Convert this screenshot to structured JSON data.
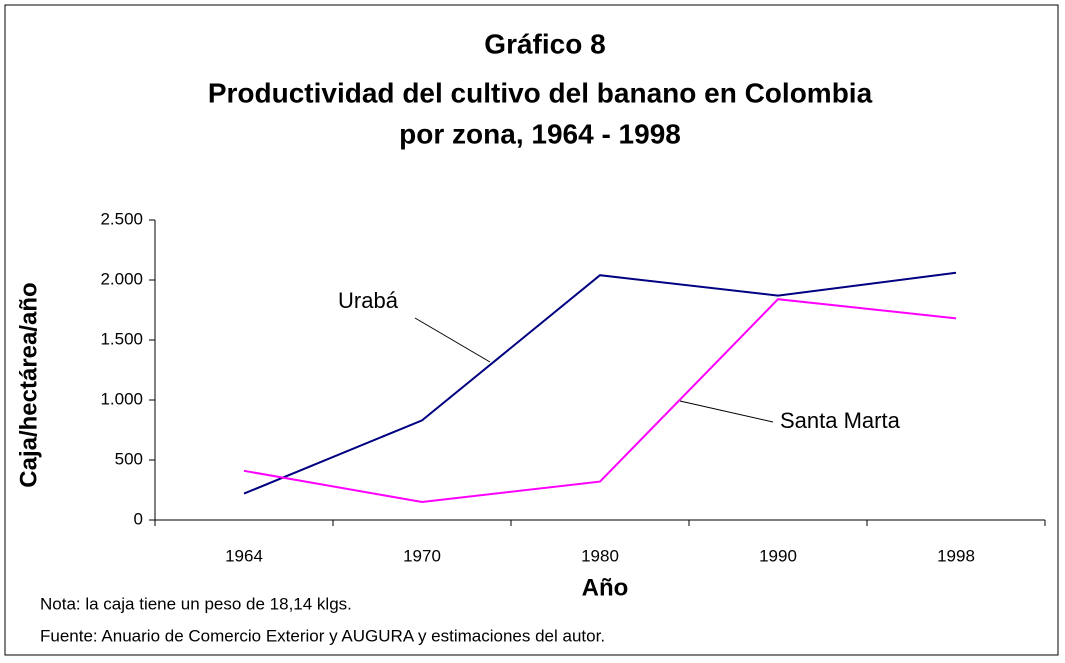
{
  "chart_data": {
    "type": "line",
    "title": [
      "Gráfico 8",
      "Productividad del cultivo del banano en Colombia",
      "por zona, 1964 - 1998"
    ],
    "x_label": "Año",
    "y_label": "Caja/hectárea/año",
    "categories": [
      "1964",
      "1970",
      "1980",
      "1990",
      "1998"
    ],
    "series": [
      {
        "name": "Urabá",
        "color": "#000080",
        "values": [
          220,
          830,
          2040,
          1870,
          2060
        ]
      },
      {
        "name": "Santa Marta",
        "color": "#ff00ff",
        "values": [
          410,
          150,
          320,
          1840,
          1680
        ]
      }
    ],
    "ylim": [
      0,
      2500
    ],
    "yticks": [
      0,
      500,
      {
        "value": 1000,
        "label": "1.000"
      },
      {
        "value": 1500,
        "label": "1.500"
      },
      {
        "value": 2000,
        "label": "2.000"
      },
      {
        "value": 2500,
        "label": "2.500"
      }
    ],
    "grid": false,
    "notes": [
      "Nota: la caja tiene un peso de 18,14 klgs.",
      "Fuente: Anuario de Comercio Exterior y AUGURA y estimaciones del autor."
    ]
  }
}
